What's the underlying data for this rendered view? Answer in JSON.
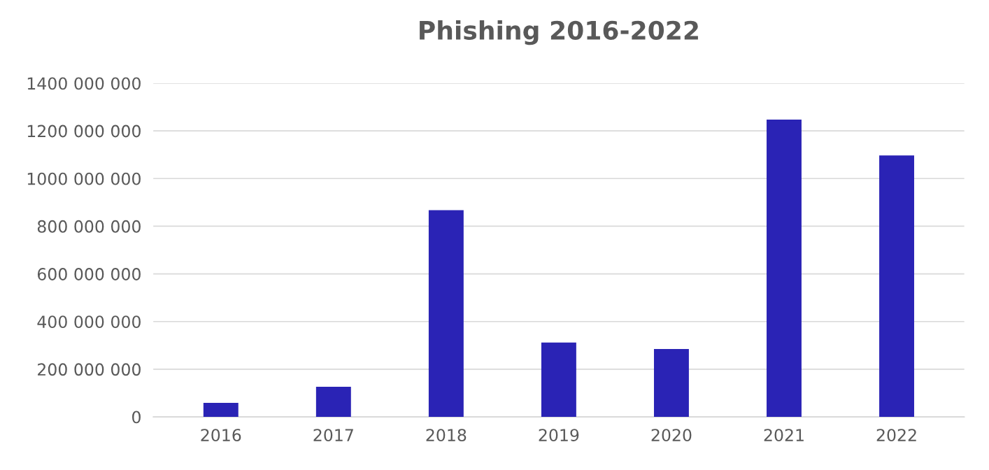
{
  "chart_data": {
    "type": "bar",
    "title": "Phishing 2016-2022",
    "categories": [
      "2016",
      "2017",
      "2018",
      "2019",
      "2020",
      "2021",
      "2022"
    ],
    "values": [
      59000000,
      126000000,
      867000000,
      312000000,
      285000000,
      1247000000,
      1097000000
    ],
    "color": "#2a23b5",
    "ylim": [
      0,
      1400000000
    ],
    "yticks": [
      0,
      {
        "value": 200000000,
        "label": "200 000 000"
      },
      {
        "value": 400000000,
        "label": "400 000 000"
      },
      {
        "value": 600000000,
        "label": "600 000 000"
      },
      {
        "value": 800000000,
        "label": "800 000 000"
      },
      {
        "value": 1000000000,
        "label": "1000 000 000"
      },
      {
        "value": 1200000000,
        "label": "1200 000 000"
      },
      {
        "value": 1400000000,
        "label": "1400 000 000"
      }
    ],
    "grid": "y"
  }
}
